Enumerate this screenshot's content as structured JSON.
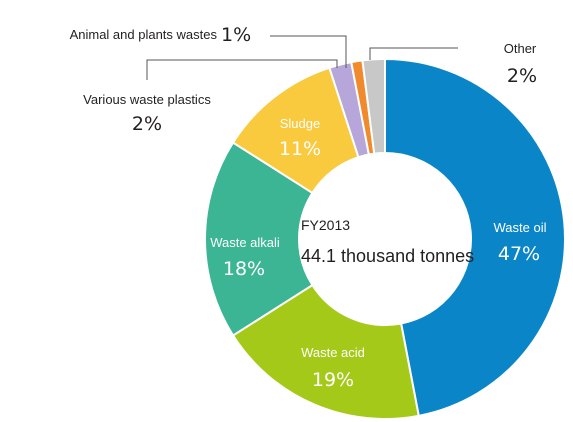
{
  "chart_data": {
    "type": "donut",
    "center_title": "FY2013",
    "center_total": "44.1 thousand tonnes",
    "slices": [
      {
        "name": "Waste oil",
        "value": 47,
        "value_label": "47%",
        "color": "#0a86c8"
      },
      {
        "name": "Waste acid",
        "value": 19,
        "value_label": "19%",
        "color": "#a5c918"
      },
      {
        "name": "Waste alkali",
        "value": 18,
        "value_label": "18%",
        "color": "#3bb594"
      },
      {
        "name": "Sludge",
        "value": 11,
        "value_label": "11%",
        "color": "#f9c93e"
      },
      {
        "name": "Various waste plastics",
        "value": 2,
        "value_label": "2%",
        "color": "#b7a6d9"
      },
      {
        "name": "Animal and plants wastes",
        "value": 1,
        "value_label": "1%",
        "color": "#f08a2c"
      },
      {
        "name": "Other",
        "value": 2,
        "value_label": "2%",
        "color": "#c8c8c8"
      }
    ]
  }
}
